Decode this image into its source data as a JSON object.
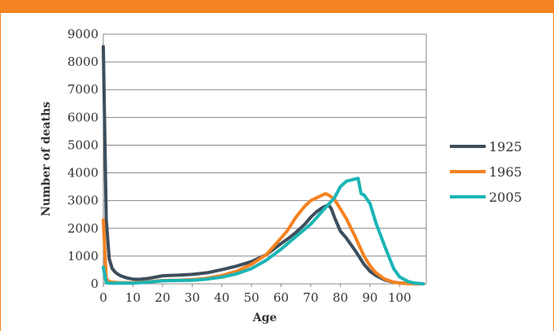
{
  "chart_data": {
    "type": "line",
    "title": "",
    "xlabel": "Age",
    "ylabel": "Number of deaths",
    "xlim": [
      0,
      109
    ],
    "ylim": [
      0,
      9000
    ],
    "xticks": [
      0,
      10,
      20,
      30,
      40,
      50,
      60,
      70,
      80,
      90,
      100
    ],
    "yticks": [
      0,
      1000,
      2000,
      3000,
      4000,
      5000,
      6000,
      7000,
      8000,
      9000
    ],
    "grid": "horizontal",
    "legend": "right",
    "series": [
      {
        "name": "1925",
        "color": "#3d4e5c",
        "x": [
          0,
          1,
          2,
          3,
          4,
          5,
          6,
          8,
          10,
          12,
          15,
          18,
          20,
          22,
          25,
          30,
          35,
          40,
          45,
          50,
          55,
          60,
          62,
          65,
          68,
          70,
          72,
          74,
          76,
          77,
          78,
          80,
          82,
          85,
          88,
          90,
          92,
          95,
          98,
          100,
          103,
          105,
          108
        ],
        "y": [
          8550,
          2300,
          900,
          550,
          420,
          340,
          280,
          210,
          170,
          160,
          190,
          250,
          290,
          300,
          310,
          340,
          400,
          510,
          640,
          800,
          1050,
          1450,
          1600,
          1850,
          2150,
          2400,
          2600,
          2750,
          2850,
          2700,
          2400,
          1900,
          1650,
          1200,
          700,
          450,
          300,
          140,
          60,
          30,
          15,
          8,
          0
        ]
      },
      {
        "name": "1965",
        "color": "#f58220",
        "x": [
          0,
          1,
          2,
          3,
          5,
          8,
          10,
          15,
          20,
          25,
          30,
          35,
          40,
          45,
          50,
          55,
          60,
          62,
          65,
          68,
          70,
          72,
          74,
          75,
          76,
          78,
          80,
          82,
          85,
          88,
          90,
          92,
          95,
          98,
          100,
          103,
          105,
          108
        ],
        "y": [
          2300,
          180,
          80,
          60,
          45,
          40,
          40,
          70,
          120,
          130,
          150,
          200,
          300,
          450,
          700,
          1050,
          1650,
          1900,
          2400,
          2800,
          3000,
          3100,
          3200,
          3250,
          3200,
          3050,
          2700,
          2350,
          1700,
          1000,
          650,
          400,
          170,
          60,
          25,
          10,
          5,
          0
        ]
      },
      {
        "name": "2005",
        "color": "#1bb5b5",
        "x": [
          0,
          1,
          2,
          3,
          5,
          10,
          15,
          20,
          25,
          30,
          35,
          40,
          45,
          50,
          55,
          60,
          65,
          70,
          75,
          78,
          80,
          82,
          84,
          85,
          86,
          87,
          88,
          90,
          92,
          95,
          98,
          100,
          103,
          105,
          108
        ],
        "y": [
          600,
          40,
          25,
          20,
          20,
          25,
          60,
          110,
          120,
          130,
          170,
          240,
          360,
          550,
          850,
          1250,
          1700,
          2150,
          2750,
          3100,
          3500,
          3700,
          3750,
          3780,
          3800,
          3250,
          3200,
          2900,
          2200,
          1350,
          550,
          250,
          80,
          30,
          0
        ]
      }
    ]
  }
}
